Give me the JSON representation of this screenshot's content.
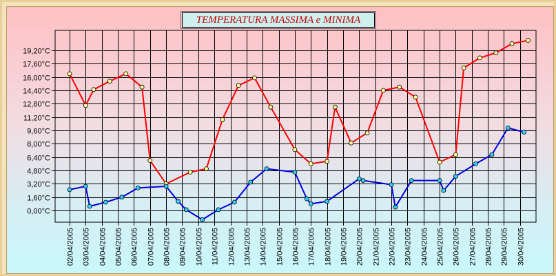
{
  "colors": {
    "max_series": "#ff0000",
    "min_series": "#0000dd",
    "max_marker_fill": "#ffff99",
    "min_marker_fill": "#33ccff",
    "grid": "#000000",
    "title_text": "#c00000"
  },
  "chart_data": {
    "type": "line",
    "title": "TEMPERATURA MASSIMA e MINIMA",
    "xlabel": "",
    "ylabel": "",
    "ylim": [
      -1.4,
      21.6
    ],
    "grid": true,
    "y_ticks": [
      0.0,
      1.6,
      3.2,
      4.8,
      6.4,
      8.0,
      9.6,
      11.2,
      12.8,
      14.4,
      16.0,
      17.6,
      19.2
    ],
    "y_tick_labels": [
      "0,00°C",
      "1,60°C",
      "3,20°C",
      "4,80°C",
      "6,40°C",
      "8,00°C",
      "9,60°C",
      "11,20°C",
      "12,80°C",
      "14,40°C",
      "16,00°C",
      "17,60°C",
      "19,20°C"
    ],
    "x_tick_labels": [
      "02/04/2005",
      "03/04/2005",
      "04/04/2005",
      "05/04/2005",
      "06/04/2005",
      "07/04/2005",
      "08/04/2005",
      "09/04/2005",
      "10/04/2005",
      "11/04/2005",
      "12/04/2005",
      "13/04/2005",
      "14/04/2005",
      "15/04/2005",
      "16/04/2005",
      "17/04/2005",
      "18/04/2005",
      "19/04/2005",
      "20/04/2005",
      "21/04/2005",
      "22/04/2005",
      "23/04/2005",
      "24/04/2005",
      "25/04/2005",
      "26/04/2005",
      "27/04/2005",
      "28/04/2005",
      "29/04/2005",
      "30/04/2005"
    ],
    "series": [
      {
        "key": "max",
        "points": [
          [
            "2005-04-02 00:00",
            16.4
          ],
          [
            "2005-04-03 00:00",
            12.6
          ],
          [
            "2005-04-03 12:00",
            14.5
          ],
          [
            "2005-04-04 12:00",
            15.5
          ],
          [
            "2005-04-05 12:00",
            16.4
          ],
          [
            "2005-04-06 12:00",
            14.8
          ],
          [
            "2005-04-07 00:00",
            6.0
          ],
          [
            "2005-04-08 00:00",
            3.2
          ],
          [
            "2005-04-09 12:00",
            4.6
          ],
          [
            "2005-04-10 12:00",
            5.0
          ],
          [
            "2005-04-11 12:00",
            10.9
          ],
          [
            "2005-04-12 12:00",
            15.0
          ],
          [
            "2005-04-13 12:00",
            15.9
          ],
          [
            "2005-04-14 12:00",
            12.4
          ],
          [
            "2005-04-16 00:00",
            7.3
          ],
          [
            "2005-04-17 00:00",
            5.6
          ],
          [
            "2005-04-18 00:00",
            5.9
          ],
          [
            "2005-04-18 12:00",
            12.4
          ],
          [
            "2005-04-19 12:00",
            8.1
          ],
          [
            "2005-04-20 12:00",
            9.3
          ],
          [
            "2005-04-21 12:00",
            14.4
          ],
          [
            "2005-04-22 12:00",
            14.8
          ],
          [
            "2005-04-23 12:00",
            13.6
          ],
          [
            "2005-04-25 00:00",
            5.8
          ],
          [
            "2005-04-26 00:00",
            6.7
          ],
          [
            "2005-04-26 12:00",
            17.1
          ],
          [
            "2005-04-27 12:00",
            18.3
          ],
          [
            "2005-04-28 12:00",
            18.9
          ],
          [
            "2005-04-29 12:00",
            20.0
          ],
          [
            "2005-04-30 12:00",
            20.4
          ]
        ]
      },
      {
        "key": "min",
        "points": [
          [
            "2005-04-02 00:00",
            2.5
          ],
          [
            "2005-04-03 00:00",
            2.9
          ],
          [
            "2005-04-03 06:00",
            0.5
          ],
          [
            "2005-04-04 06:00",
            1.0
          ],
          [
            "2005-04-05 06:00",
            1.6
          ],
          [
            "2005-04-06 06:00",
            2.7
          ],
          [
            "2005-04-08 00:00",
            2.9
          ],
          [
            "2005-04-08 18:00",
            1.1
          ],
          [
            "2005-04-09 06:00",
            0.1
          ],
          [
            "2005-04-10 06:00",
            -1.1
          ],
          [
            "2005-04-11 06:00",
            0.1
          ],
          [
            "2005-04-12 06:00",
            1.0
          ],
          [
            "2005-04-13 06:00",
            3.4
          ],
          [
            "2005-04-14 06:00",
            5.0
          ],
          [
            "2005-04-16 00:00",
            4.6
          ],
          [
            "2005-04-16 18:00",
            1.4
          ],
          [
            "2005-04-17 00:00",
            0.8
          ],
          [
            "2005-04-18 00:00",
            1.1
          ],
          [
            "2005-04-20 00:00",
            3.8
          ],
          [
            "2005-04-20 06:00",
            3.6
          ],
          [
            "2005-04-22 00:00",
            3.1
          ],
          [
            "2005-04-22 06:00",
            0.4
          ],
          [
            "2005-04-23 06:00",
            3.6
          ],
          [
            "2005-04-25 00:00",
            3.6
          ],
          [
            "2005-04-25 06:00",
            2.4
          ],
          [
            "2005-04-26 00:00",
            4.1
          ],
          [
            "2005-04-27 06:00",
            5.6
          ],
          [
            "2005-04-28 06:00",
            6.7
          ],
          [
            "2005-04-29 06:00",
            9.9
          ],
          [
            "2005-04-30 06:00",
            9.4
          ]
        ]
      }
    ]
  }
}
